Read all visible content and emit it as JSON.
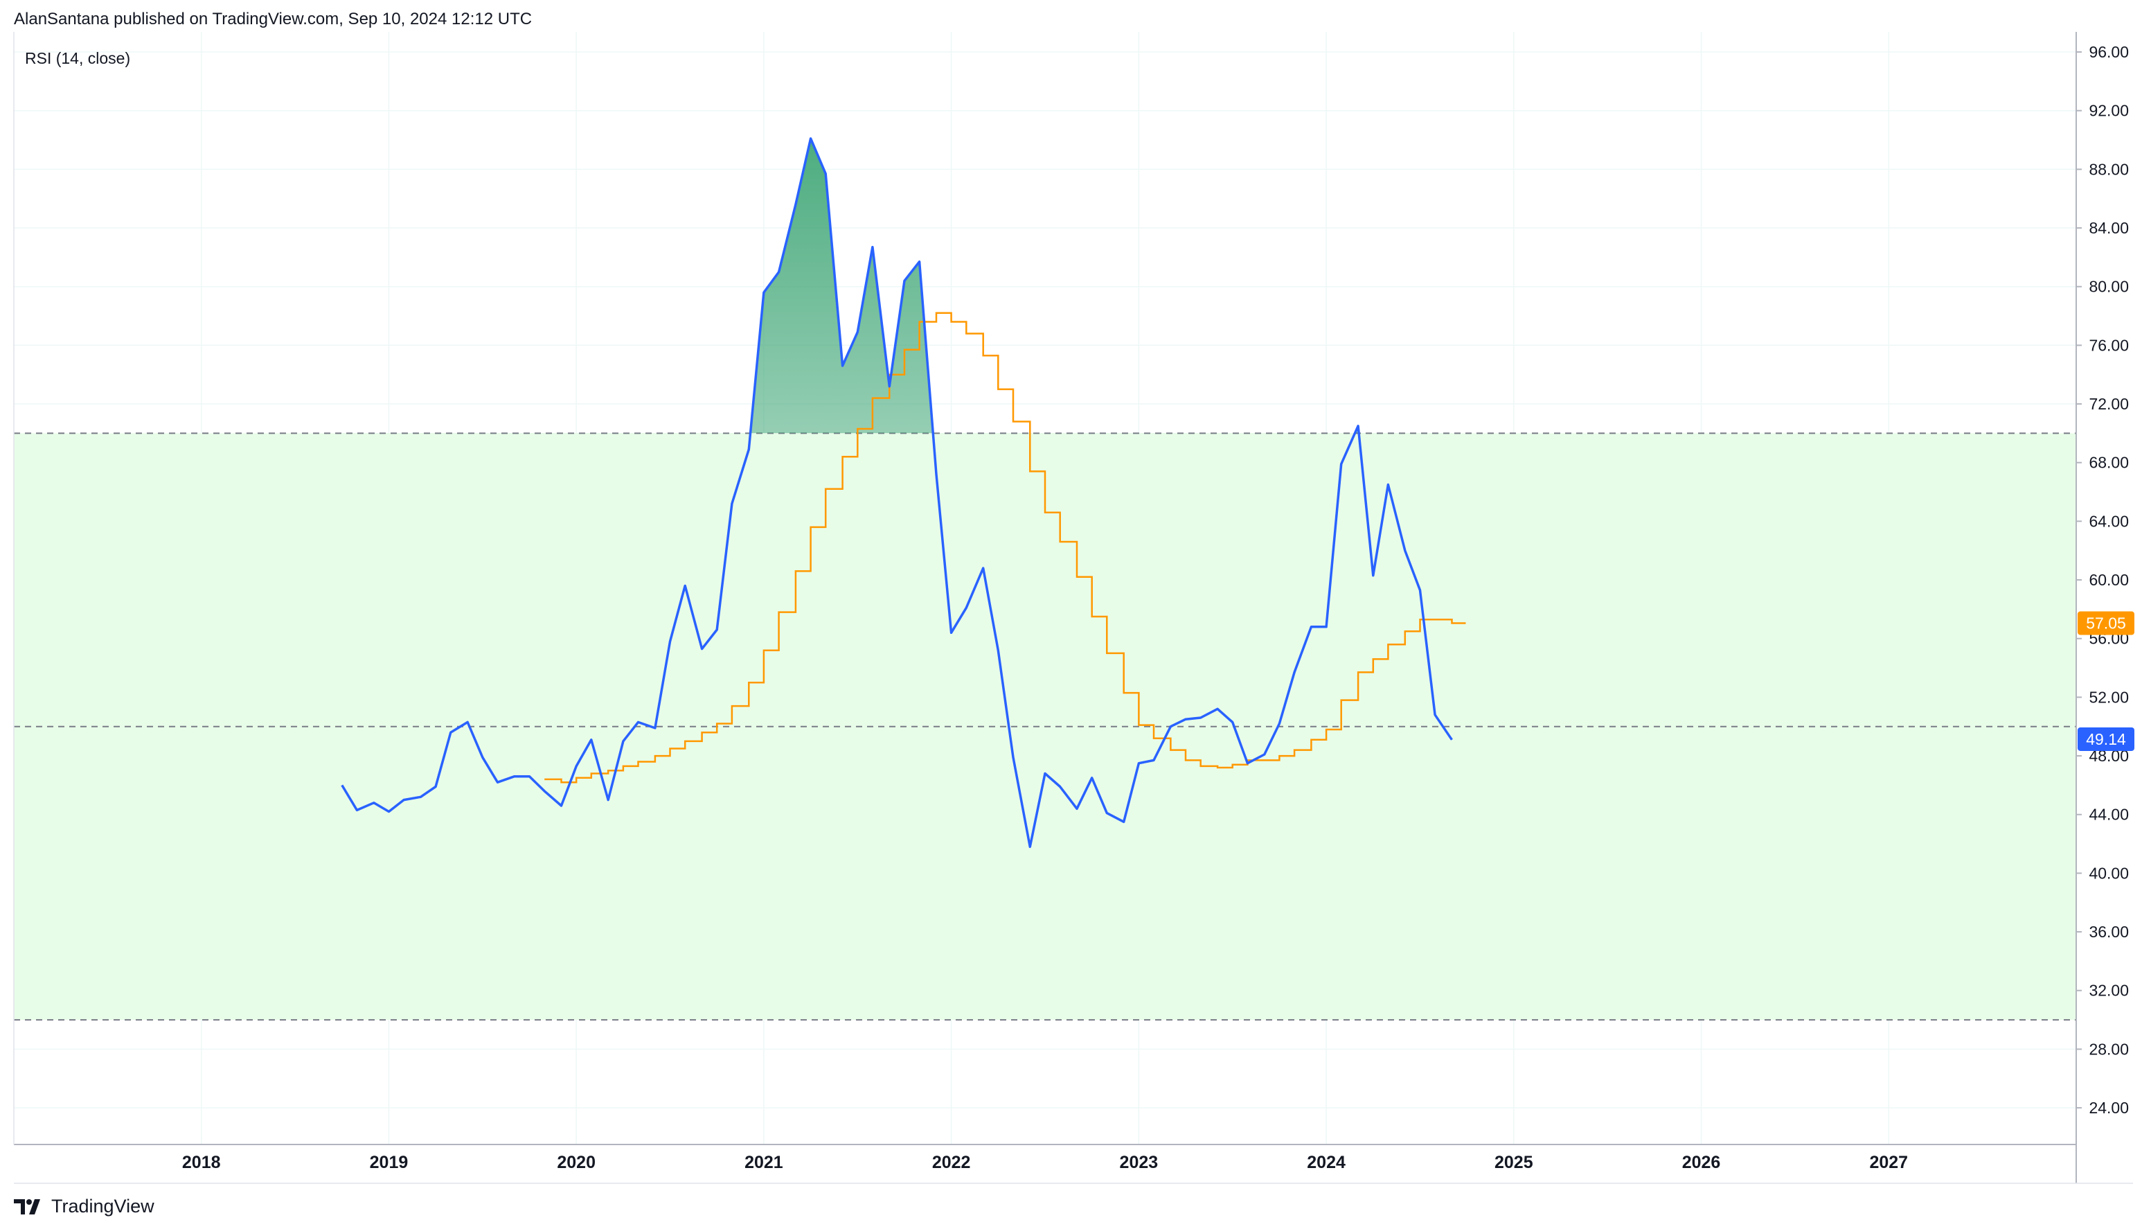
{
  "header": {
    "publisher": "AlanSantana published on TradingView.com, Sep 10, 2024 12:12 UTC"
  },
  "footer": {
    "brand": "TradingView",
    "logo_icon": "tradingview-logo-icon"
  },
  "colors": {
    "rsi": "#2962ff",
    "rsi_ma": "#ff9800",
    "band_fill": "#e8fde8",
    "grid": "#eef7f7",
    "dashed": "#787b86",
    "axis_text": "#131722",
    "peak_fill_top": "#2e9e6a"
  },
  "chart_data": {
    "type": "line",
    "title": "RSI (14, close)",
    "xlabel": "",
    "ylabel": "",
    "x_ticks": [
      "2018",
      "2019",
      "2020",
      "2021",
      "2022",
      "2023",
      "2024",
      "2025",
      "2026",
      "2027"
    ],
    "y_ticks": [
      "24.00",
      "28.00",
      "32.00",
      "36.00",
      "40.00",
      "44.00",
      "48.00",
      "52.00",
      "56.00",
      "60.00",
      "64.00",
      "68.00",
      "72.00",
      "76.00",
      "80.00",
      "84.00",
      "88.00",
      "92.00",
      "96.00"
    ],
    "xlim": [
      2017.0,
      2028.0
    ],
    "ylim": [
      21.5,
      96.9
    ],
    "bands": {
      "upper": 70,
      "middle": 50,
      "lower": 30
    },
    "grid": true,
    "series": [
      {
        "key": "rsi",
        "last_value": "49.14",
        "points": [
          [
            2018.75,
            46.0
          ],
          [
            2018.83,
            44.3
          ],
          [
            2018.92,
            44.8
          ],
          [
            2019.0,
            44.2
          ],
          [
            2019.08,
            45.0
          ],
          [
            2019.17,
            45.2
          ],
          [
            2019.25,
            45.9
          ],
          [
            2019.33,
            49.6
          ],
          [
            2019.42,
            50.3
          ],
          [
            2019.5,
            47.9
          ],
          [
            2019.58,
            46.2
          ],
          [
            2019.67,
            46.6
          ],
          [
            2019.75,
            46.6
          ],
          [
            2019.83,
            45.6
          ],
          [
            2019.92,
            44.6
          ],
          [
            2020.0,
            47.3
          ],
          [
            2020.08,
            49.1
          ],
          [
            2020.17,
            45.0
          ],
          [
            2020.25,
            49.0
          ],
          [
            2020.33,
            50.3
          ],
          [
            2020.42,
            49.9
          ],
          [
            2020.5,
            55.8
          ],
          [
            2020.58,
            59.6
          ],
          [
            2020.67,
            55.3
          ],
          [
            2020.75,
            56.6
          ],
          [
            2020.83,
            65.2
          ],
          [
            2020.92,
            68.9
          ],
          [
            2021.0,
            79.6
          ],
          [
            2021.08,
            81.0
          ],
          [
            2021.17,
            85.6
          ],
          [
            2021.25,
            90.1
          ],
          [
            2021.33,
            87.7
          ],
          [
            2021.42,
            74.6
          ],
          [
            2021.5,
            76.9
          ],
          [
            2021.58,
            82.7
          ],
          [
            2021.67,
            73.2
          ],
          [
            2021.75,
            80.4
          ],
          [
            2021.83,
            81.7
          ],
          [
            2021.92,
            67.2
          ],
          [
            2022.0,
            56.4
          ],
          [
            2022.08,
            58.1
          ],
          [
            2022.17,
            60.8
          ],
          [
            2022.25,
            55.2
          ],
          [
            2022.33,
            47.9
          ],
          [
            2022.42,
            41.8
          ],
          [
            2022.5,
            46.8
          ],
          [
            2022.58,
            45.9
          ],
          [
            2022.67,
            44.4
          ],
          [
            2022.75,
            46.5
          ],
          [
            2022.83,
            44.1
          ],
          [
            2022.92,
            43.5
          ],
          [
            2023.0,
            47.5
          ],
          [
            2023.08,
            47.7
          ],
          [
            2023.17,
            50.0
          ],
          [
            2023.25,
            50.5
          ],
          [
            2023.33,
            50.6
          ],
          [
            2023.42,
            51.2
          ],
          [
            2023.5,
            50.3
          ],
          [
            2023.58,
            47.5
          ],
          [
            2023.67,
            48.1
          ],
          [
            2023.75,
            50.2
          ],
          [
            2023.83,
            53.7
          ],
          [
            2023.92,
            56.8
          ],
          [
            2024.0,
            56.8
          ],
          [
            2024.08,
            67.9
          ],
          [
            2024.17,
            70.5
          ],
          [
            2024.25,
            60.3
          ],
          [
            2024.33,
            66.5
          ],
          [
            2024.42,
            62.0
          ],
          [
            2024.5,
            59.3
          ],
          [
            2024.58,
            50.8
          ],
          [
            2024.67,
            49.1
          ]
        ]
      },
      {
        "key": "rsi_ma",
        "last_value": "57.05",
        "points": [
          [
            2019.83,
            46.4
          ],
          [
            2019.92,
            46.2
          ],
          [
            2020.0,
            46.5
          ],
          [
            2020.08,
            46.8
          ],
          [
            2020.17,
            47.0
          ],
          [
            2020.25,
            47.3
          ],
          [
            2020.33,
            47.6
          ],
          [
            2020.42,
            48.0
          ],
          [
            2020.5,
            48.5
          ],
          [
            2020.58,
            49.0
          ],
          [
            2020.67,
            49.6
          ],
          [
            2020.75,
            50.2
          ],
          [
            2020.83,
            51.4
          ],
          [
            2020.92,
            53.0
          ],
          [
            2021.0,
            55.2
          ],
          [
            2021.08,
            57.8
          ],
          [
            2021.17,
            60.6
          ],
          [
            2021.25,
            63.6
          ],
          [
            2021.33,
            66.2
          ],
          [
            2021.42,
            68.4
          ],
          [
            2021.5,
            70.3
          ],
          [
            2021.58,
            72.4
          ],
          [
            2021.67,
            74.0
          ],
          [
            2021.75,
            75.7
          ],
          [
            2021.83,
            77.6
          ],
          [
            2021.92,
            78.2
          ],
          [
            2022.0,
            77.6
          ],
          [
            2022.08,
            76.8
          ],
          [
            2022.17,
            75.3
          ],
          [
            2022.25,
            73.0
          ],
          [
            2022.33,
            70.8
          ],
          [
            2022.42,
            67.4
          ],
          [
            2022.5,
            64.6
          ],
          [
            2022.58,
            62.6
          ],
          [
            2022.67,
            60.2
          ],
          [
            2022.75,
            57.5
          ],
          [
            2022.83,
            55.0
          ],
          [
            2022.92,
            52.3
          ],
          [
            2023.0,
            50.1
          ],
          [
            2023.08,
            49.2
          ],
          [
            2023.17,
            48.4
          ],
          [
            2023.25,
            47.7
          ],
          [
            2023.33,
            47.3
          ],
          [
            2023.42,
            47.2
          ],
          [
            2023.5,
            47.4
          ],
          [
            2023.58,
            47.7
          ],
          [
            2023.67,
            47.7
          ],
          [
            2023.75,
            48.0
          ],
          [
            2023.83,
            48.4
          ],
          [
            2023.92,
            49.1
          ],
          [
            2024.0,
            49.8
          ],
          [
            2024.08,
            51.8
          ],
          [
            2024.17,
            53.7
          ],
          [
            2024.25,
            54.6
          ],
          [
            2024.33,
            55.6
          ],
          [
            2024.42,
            56.5
          ],
          [
            2024.5,
            57.3
          ],
          [
            2024.58,
            57.3
          ],
          [
            2024.67,
            57.05
          ]
        ]
      }
    ]
  }
}
